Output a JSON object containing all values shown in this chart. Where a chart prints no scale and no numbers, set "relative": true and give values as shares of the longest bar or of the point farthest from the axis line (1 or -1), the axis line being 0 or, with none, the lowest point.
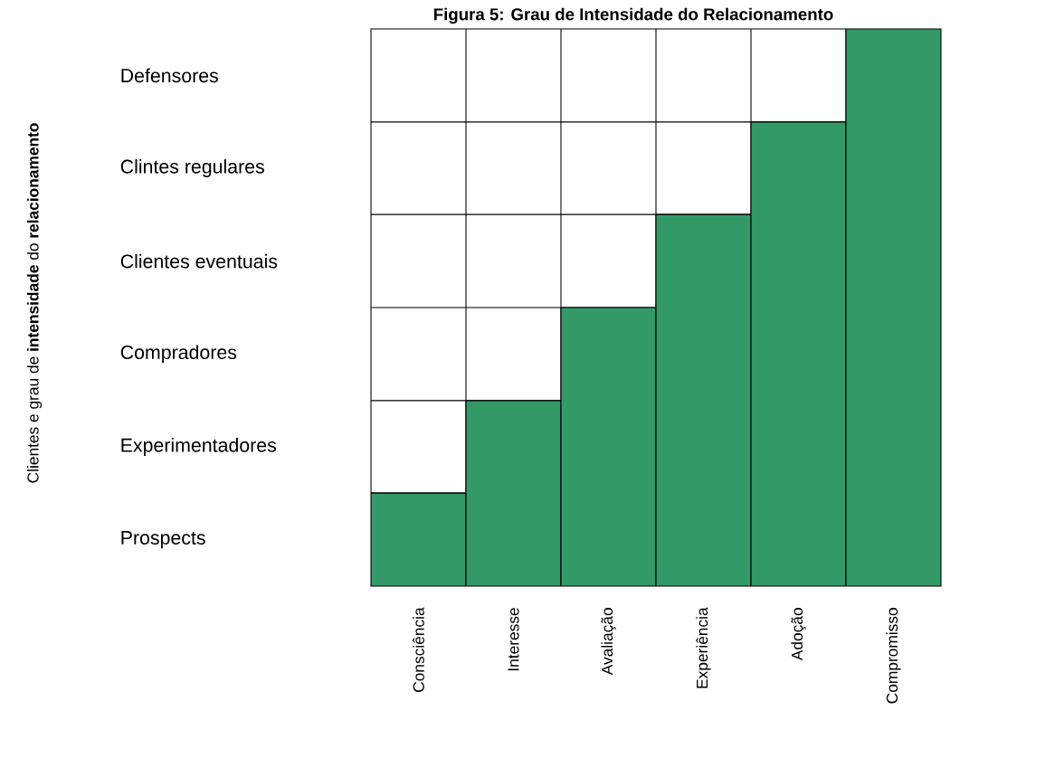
{
  "chart_data": {
    "type": "bar",
    "title": "Figura 5: Grau de Intensidade do Relacionamento",
    "categories": [
      "Consciência",
      "Interesse",
      "Avaliação",
      "Experiência",
      "Adoção",
      "Compromisso"
    ],
    "values": [
      0.167,
      0.333,
      0.5,
      0.667,
      0.833,
      1
    ],
    "color": "#339966",
    "relative": true,
    "annotations": [
      "Clientes e grau de **intensidade** do **relacionamento**",
      "Prospects",
      "Experimentadores",
      "Compradores",
      "Clientes eventuais",
      "Clintes regulares",
      "Defensores"
    ],
    "grid": true
  }
}
